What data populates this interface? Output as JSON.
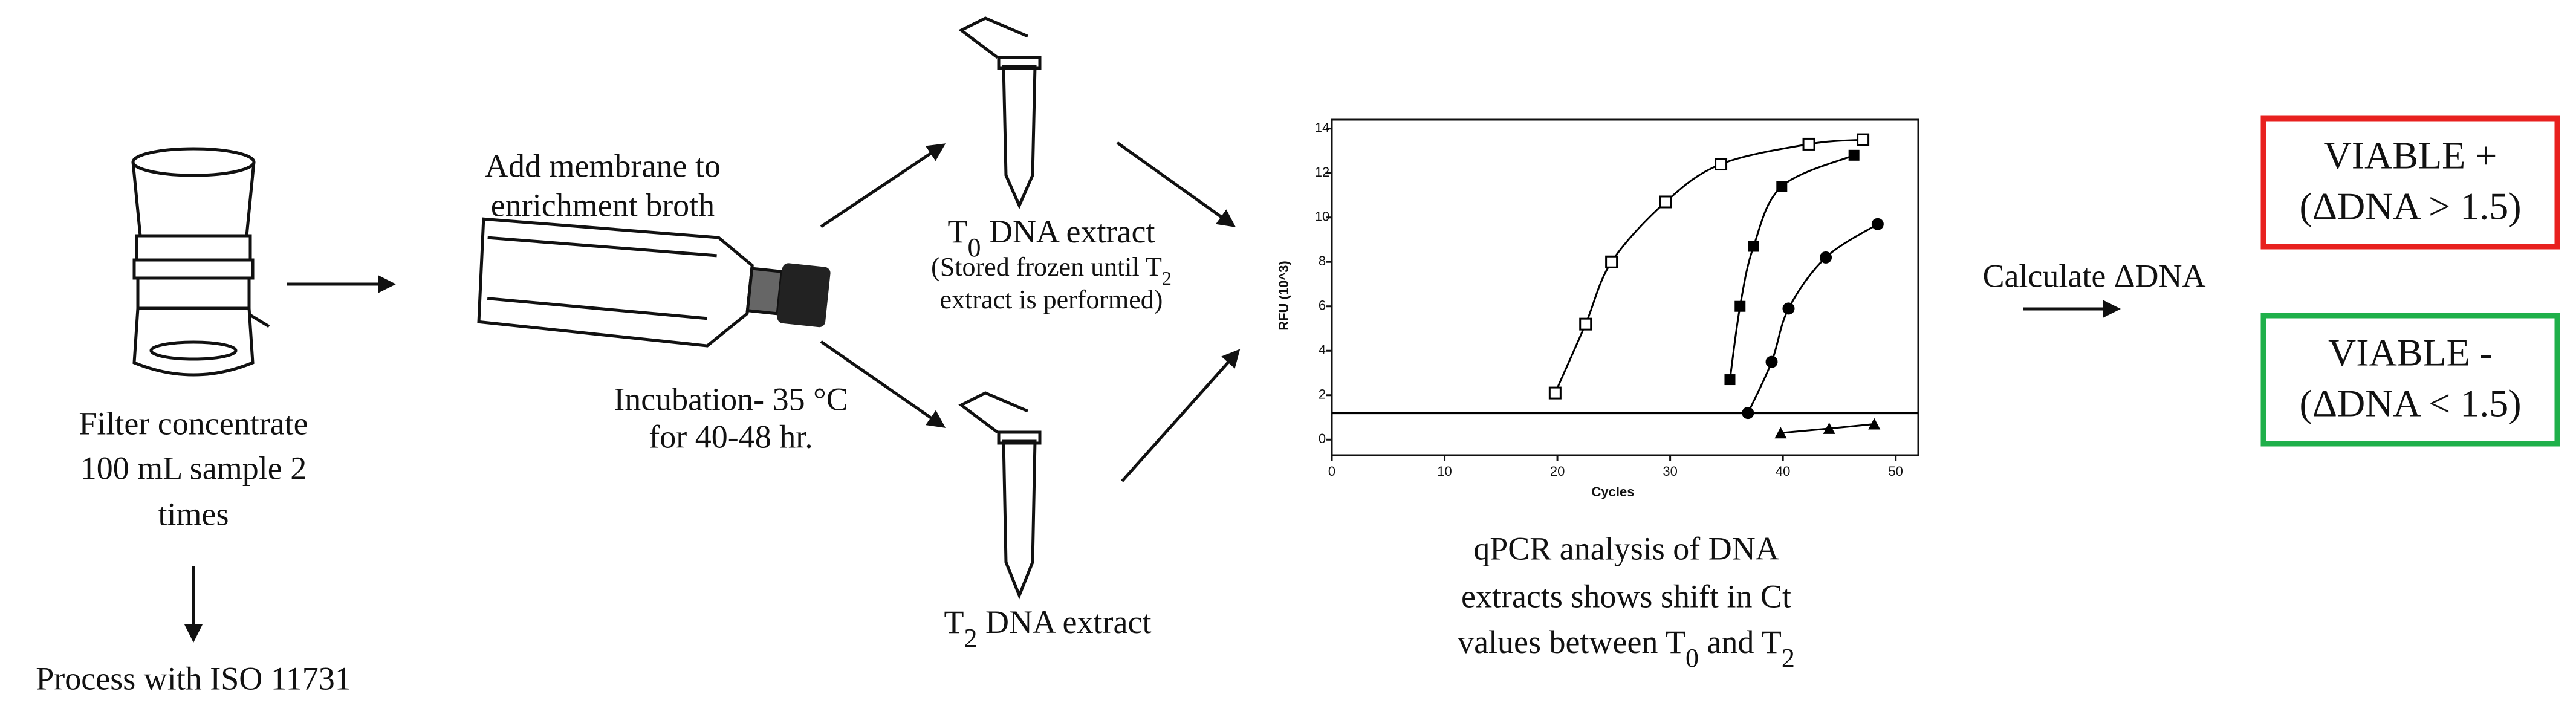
{
  "filter_step": {
    "lines": [
      "Filter concentrate",
      "100 mL sample 2",
      "times"
    ]
  },
  "iso_step": {
    "label": "Process with ISO 11731"
  },
  "enrichment_step": {
    "lines": [
      "Add membrane to",
      "enrichment broth"
    ]
  },
  "incubation": {
    "lines": [
      "Incubation- 35 °C",
      "for 40-48 hr."
    ]
  },
  "t0_extract": {
    "label": {
      "prefix": "T",
      "sub": "0",
      "suffix": " DNA extract"
    },
    "note1": {
      "prefix": "(Stored frozen until T",
      "sub": "2"
    },
    "note2": "extract is performed)"
  },
  "t2_extract": {
    "label": {
      "prefix": "T",
      "sub": "2",
      "suffix": " DNA extract"
    }
  },
  "qpcr_plot": {
    "ylabel": "RFU (10^3)",
    "xlabel": "Cycles",
    "xlim": [
      0,
      52
    ],
    "ylim": [
      -0.7,
      14.4
    ],
    "xticks": [
      0,
      10,
      20,
      30,
      40,
      50
    ],
    "yticks": [
      0,
      2,
      4,
      6,
      8,
      10,
      12,
      14
    ],
    "threshold": 1.2,
    "color": "#000000",
    "series": [
      {
        "marker": "square-open",
        "x": [
          19.8,
          22.5,
          24.8,
          29.6,
          34.5,
          42.3,
          47.1
        ],
        "values": [
          2.1,
          5.2,
          8.0,
          10.7,
          12.4,
          13.3,
          13.5
        ]
      },
      {
        "marker": "square",
        "x": [
          35.3,
          36.2,
          37.4,
          39.9,
          46.3
        ],
        "values": [
          2.7,
          6.0,
          8.7,
          11.4,
          12.8
        ]
      },
      {
        "marker": "circle",
        "x": [
          36.9,
          39.0,
          40.5,
          43.8,
          48.4
        ],
        "values": [
          1.2,
          3.5,
          5.9,
          8.2,
          9.7
        ]
      },
      {
        "marker": "triangle",
        "x": [
          39.8,
          44.1,
          48.1
        ],
        "values": [
          0.3,
          0.5,
          0.7
        ]
      }
    ]
  },
  "qpcr_caption": {
    "line1": "qPCR analysis of DNA",
    "line2": "extracts shows shift in Ct",
    "line3": {
      "prefix": "values between T",
      "sub1": "0",
      "middle": " and T",
      "sub2": "2"
    }
  },
  "calculate": "Calculate ΔDNA",
  "results": [
    {
      "lines": [
        "VIABLE +",
        "(ΔDNA > 1.5)"
      ],
      "color": "#e8211f"
    },
    {
      "lines": [
        "VIABLE -",
        "(ΔDNA < 1.5)"
      ],
      "color": "#1fb04a"
    }
  ]
}
